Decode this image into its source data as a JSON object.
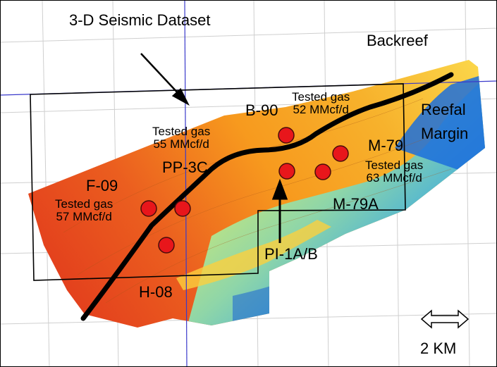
{
  "map": {
    "title": "3-D Seismic Dataset",
    "regions": {
      "backreef": "Backreef",
      "reefal_margin_line1": "Reefal",
      "reefal_margin_line2": "Margin"
    },
    "wells": [
      {
        "name": "B-90"
      },
      {
        "name": "M-79"
      },
      {
        "name": "PP-3C"
      },
      {
        "name": "F-09"
      },
      {
        "name": "M-79A"
      },
      {
        "name": "PI-1A/B"
      },
      {
        "name": "H-08"
      }
    ],
    "tests": [
      {
        "line1": "Tested gas",
        "line2": "52 MMcf/d"
      },
      {
        "line1": "Tested gas",
        "line2": "55 MMcf/d"
      },
      {
        "line1": "Tested gas",
        "line2": "63 MMcf/d"
      },
      {
        "line1": "Tested gas",
        "line2": "57 MMcf/d"
      }
    ],
    "scale_bar": "2 KM",
    "colors": {
      "deep": "#e0341c",
      "mid": "#f79a1e",
      "shallow": "#fbd64a",
      "margin_green": "#8fd6a8",
      "margin_blue": "#1a78e0",
      "well_fill": "#e8161b",
      "grid_line": "#3a3acb"
    }
  }
}
